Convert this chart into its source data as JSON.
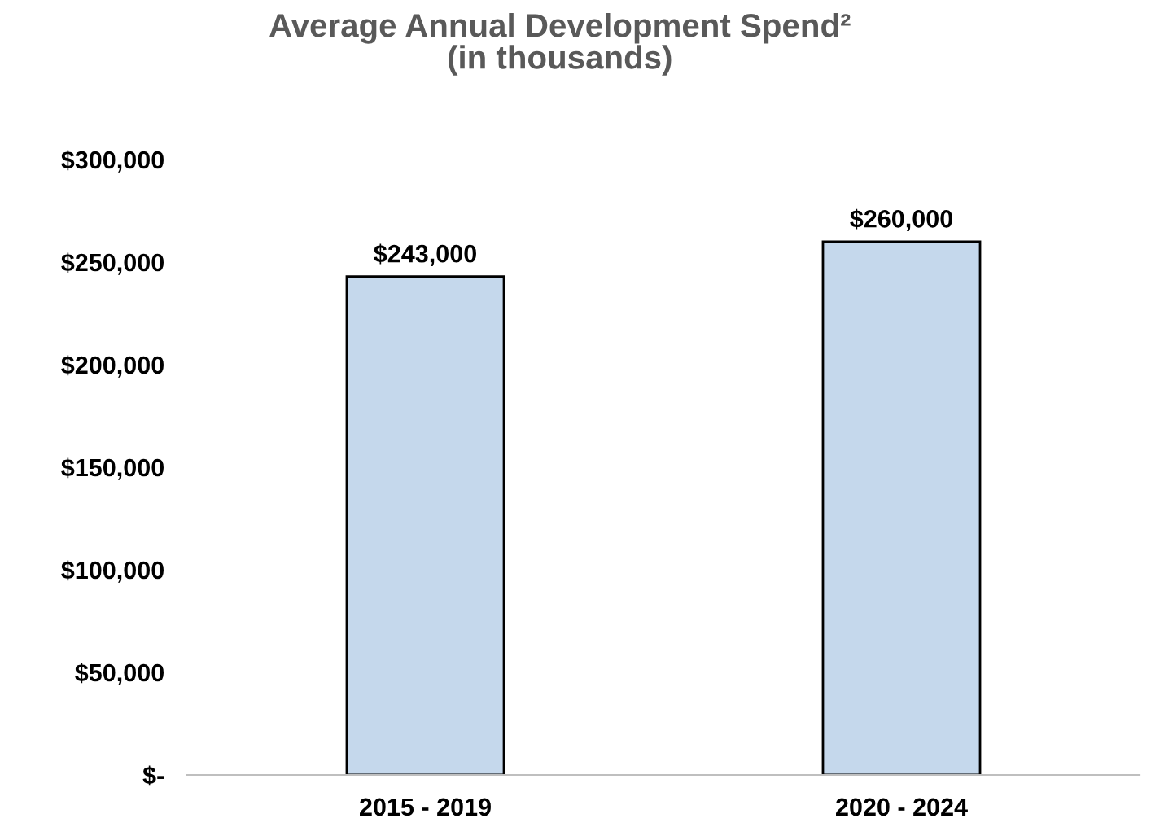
{
  "chart_data": {
    "type": "bar",
    "title": "Average Annual Development Spend²\n(in thousands)",
    "categories": [
      "2015 - 2019",
      "2020 - 2024"
    ],
    "values": [
      243000,
      260000
    ],
    "color": "#c5d8ec",
    "value_labels": [
      "$243,000",
      "$260,000"
    ],
    "ylim": [
      0,
      300000
    ],
    "yticks": [
      {
        "value": 0,
        "label": "$-"
      },
      {
        "value": 50000,
        "label": "$50,000"
      },
      {
        "value": 100000,
        "label": "$100,000"
      },
      {
        "value": 150000,
        "label": "$150,000"
      },
      {
        "value": 200000,
        "label": "$200,000"
      },
      {
        "value": 250000,
        "label": "$250,000"
      },
      {
        "value": 300000,
        "label": "$300,000"
      }
    ],
    "grid": false,
    "legend": false
  }
}
